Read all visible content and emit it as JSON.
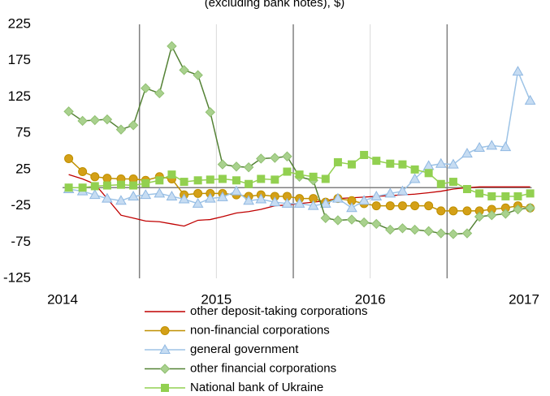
{
  "chart_data": {
    "type": "line",
    "title": "(excluding bank notes), $)",
    "x": [
      2014.04,
      2014.13,
      2014.21,
      2014.29,
      2014.38,
      2014.46,
      2014.54,
      2014.63,
      2014.71,
      2014.79,
      2014.88,
      2014.96,
      2015.04,
      2015.13,
      2015.21,
      2015.29,
      2015.38,
      2015.46,
      2015.54,
      2015.63,
      2015.71,
      2015.79,
      2015.88,
      2015.96,
      2016.04,
      2016.13,
      2016.21,
      2016.29,
      2016.38,
      2016.46,
      2016.54,
      2016.63,
      2016.71,
      2016.79,
      2016.88,
      2016.96,
      2017.04
    ],
    "series": [
      {
        "name": "other deposit-taking corporations",
        "color": "#c00000",
        "marker": "none",
        "values": [
          18,
          12,
          5,
          -15,
          -38,
          -42,
          -46,
          -47,
          -50,
          -53,
          -45,
          -44,
          -40,
          -35,
          -33,
          -30,
          -25,
          -24,
          -22,
          -20,
          -18,
          -15,
          -14,
          -13,
          -12,
          -11,
          -10,
          -9,
          -7,
          -5,
          -2,
          0,
          1,
          1,
          1,
          1,
          1
        ]
      },
      {
        "name": "non-financial corporations",
        "color": "#bf9000",
        "marker": "circle",
        "values": [
          40,
          22,
          15,
          13,
          12,
          12,
          10,
          15,
          12,
          -10,
          -8,
          -8,
          -8,
          -10,
          -12,
          -10,
          -12,
          -12,
          -15,
          -15,
          -20,
          -15,
          -18,
          -22,
          -25,
          -25,
          -25,
          -25,
          -25,
          -32,
          -32,
          -32,
          -32,
          -30,
          -28,
          -25,
          -28
        ]
      },
      {
        "name": "general government",
        "color": "#9dc3e6",
        "marker": "triangle",
        "values": [
          -2,
          -5,
          -10,
          -15,
          -18,
          -12,
          -10,
          -8,
          -12,
          -16,
          -22,
          -15,
          -13,
          -5,
          -18,
          -16,
          -20,
          -22,
          -22,
          -25,
          -22,
          -15,
          -28,
          -18,
          -12,
          -8,
          -5,
          12,
          30,
          33,
          32,
          47,
          55,
          58,
          56,
          160,
          120
        ]
      },
      {
        "name": "other financial corporations",
        "color": "#548235",
        "marker": "diamond",
        "values": [
          105,
          92,
          93,
          94,
          80,
          86,
          137,
          130,
          195,
          162,
          155,
          104,
          32,
          29,
          28,
          40,
          41,
          43,
          15,
          10,
          -42,
          -45,
          -44,
          -48,
          -50,
          -58,
          -56,
          -58,
          -60,
          -63,
          -64,
          -63,
          -40,
          -38,
          -36,
          -30,
          -28
        ]
      },
      {
        "name": "National bank of Ukraine",
        "color": "#92d050",
        "marker": "square",
        "values": [
          0,
          0,
          2,
          3,
          4,
          3,
          6,
          10,
          18,
          8,
          10,
          11,
          12,
          10,
          5,
          12,
          11,
          22,
          18,
          15,
          12,
          35,
          32,
          45,
          37,
          33,
          32,
          25,
          20,
          5,
          8,
          -2,
          -8,
          -12,
          -12,
          -12,
          -8
        ]
      }
    ],
    "xlim": [
      2014,
      2017.05
    ],
    "xticks": [
      2014,
      2015,
      2016,
      2017
    ],
    "vlines": [
      2014.5,
      2015.5,
      2016.5
    ],
    "ylim": [
      -125,
      225
    ],
    "yticks": [
      -125,
      -75,
      -25,
      25,
      75,
      125,
      175,
      225
    ]
  }
}
